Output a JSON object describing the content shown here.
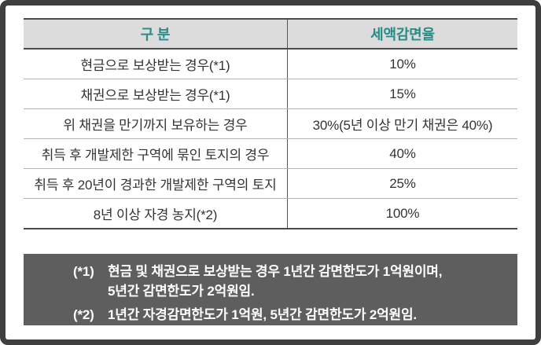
{
  "table": {
    "headers": [
      "구 분",
      "세액감면율"
    ],
    "rows": [
      [
        "현금으로 보상받는 경우(*1)",
        "10%"
      ],
      [
        "채권으로 보상받는 경우(*1)",
        "15%"
      ],
      [
        "위 채권을 만기까지 보유하는 경우",
        "30%(5년 이상 만기 채권은 40%)"
      ],
      [
        "취득 후 개발제한 구역에 묶인 토지의 경우",
        "40%"
      ],
      [
        "취득 후 20년이 경과한 개발제한 구역의 토지",
        "25%"
      ],
      [
        "8년 이상 자경 농지(*2)",
        "100%"
      ]
    ]
  },
  "notes": {
    "n1_label": "(*1)",
    "n1_line1": "현금 및 채권으로 보상받는 경우 1년간 감면한도가 1억원이며,",
    "n1_line2": "5년간 감면한도가 2억원임.",
    "n2_label": "(*2)",
    "n2_line1": "1년간 자경감면한도가 1억원, 5년간 감면한도가 2억원임."
  },
  "colors": {
    "accent_teal": "#278c86",
    "frame_border": "#3f3f3f",
    "header_bg": "#dcdcdc",
    "note_bg": "#5e5e5e",
    "body_text": "#333333",
    "row_divider": "#b3b3b3",
    "dark_border": "#4a4a4a"
  }
}
